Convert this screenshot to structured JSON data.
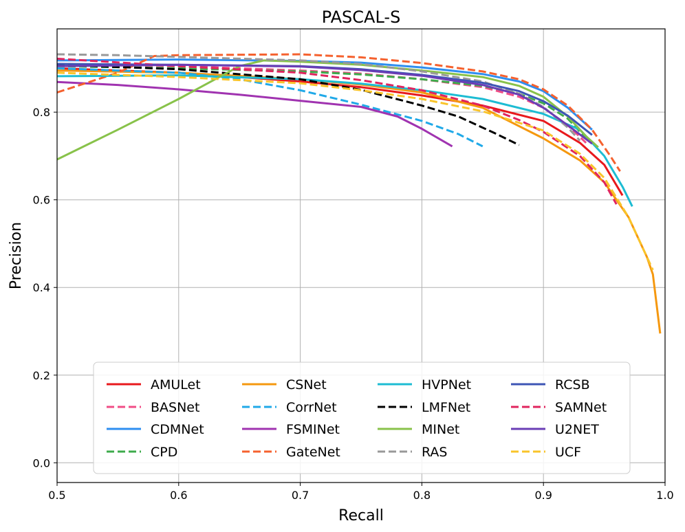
{
  "chart_data": {
    "type": "line",
    "title": "PASCAL-S",
    "xlabel": "Recall",
    "ylabel": "Precision",
    "xlim": [
      0.5,
      1.0
    ],
    "ylim": [
      -0.045,
      0.99
    ],
    "xticks": [
      0.5,
      0.6,
      0.7,
      0.8,
      0.9,
      1.0
    ],
    "xtick_labels": [
      "0.5",
      "0.6",
      "0.7",
      "0.8",
      "0.9",
      "1.0"
    ],
    "yticks": [
      0.0,
      0.2,
      0.4,
      0.6,
      0.8
    ],
    "ytick_labels": [
      "0.0",
      "0.2",
      "0.4",
      "0.6",
      "0.8"
    ],
    "grid": true,
    "legend_position": "bottom-center",
    "legend_columns": 4,
    "series": [
      {
        "name": "AMULet",
        "color": "#e8191c",
        "dash": "solid",
        "points": [
          [
            0.5,
            0.9
          ],
          [
            0.6,
            0.89
          ],
          [
            0.7,
            0.87
          ],
          [
            0.75,
            0.857
          ],
          [
            0.8,
            0.838
          ],
          [
            0.85,
            0.815
          ],
          [
            0.9,
            0.78
          ],
          [
            0.93,
            0.73
          ],
          [
            0.95,
            0.68
          ],
          [
            0.965,
            0.61
          ]
        ]
      },
      {
        "name": "BASNet",
        "color": "#f04c86",
        "dash": "dashed",
        "points": [
          [
            0.5,
            0.91
          ],
          [
            0.6,
            0.905
          ],
          [
            0.7,
            0.895
          ],
          [
            0.75,
            0.888
          ],
          [
            0.8,
            0.875
          ],
          [
            0.85,
            0.857
          ],
          [
            0.88,
            0.835
          ],
          [
            0.9,
            0.81
          ],
          [
            0.92,
            0.77
          ],
          [
            0.935,
            0.73
          ]
        ]
      },
      {
        "name": "CDMNet",
        "color": "#2e8ef0",
        "dash": "solid",
        "points": [
          [
            0.5,
            0.918
          ],
          [
            0.6,
            0.92
          ],
          [
            0.7,
            0.917
          ],
          [
            0.75,
            0.913
          ],
          [
            0.8,
            0.902
          ],
          [
            0.85,
            0.887
          ],
          [
            0.88,
            0.87
          ],
          [
            0.9,
            0.848
          ],
          [
            0.92,
            0.81
          ],
          [
            0.94,
            0.76
          ]
        ]
      },
      {
        "name": "CPD",
        "color": "#3eab4b",
        "dash": "dashed",
        "points": [
          [
            0.5,
            0.905
          ],
          [
            0.6,
            0.9
          ],
          [
            0.7,
            0.893
          ],
          [
            0.75,
            0.886
          ],
          [
            0.8,
            0.875
          ],
          [
            0.85,
            0.86
          ],
          [
            0.88,
            0.842
          ],
          [
            0.9,
            0.82
          ],
          [
            0.92,
            0.785
          ],
          [
            0.935,
            0.74
          ]
        ]
      },
      {
        "name": "CSNet",
        "color": "#f5980f",
        "dash": "solid",
        "points": [
          [
            0.5,
            0.895
          ],
          [
            0.6,
            0.89
          ],
          [
            0.7,
            0.875
          ],
          [
            0.75,
            0.863
          ],
          [
            0.8,
            0.845
          ],
          [
            0.85,
            0.81
          ],
          [
            0.9,
            0.74
          ],
          [
            0.93,
            0.69
          ],
          [
            0.95,
            0.64
          ],
          [
            0.97,
            0.56
          ],
          [
            0.985,
            0.47
          ],
          [
            0.99,
            0.43
          ],
          [
            0.996,
            0.295
          ]
        ]
      },
      {
        "name": "CorrNet",
        "color": "#20a9e8",
        "dash": "dashed",
        "points": [
          [
            0.5,
            0.9
          ],
          [
            0.6,
            0.89
          ],
          [
            0.65,
            0.875
          ],
          [
            0.7,
            0.85
          ],
          [
            0.75,
            0.817
          ],
          [
            0.8,
            0.78
          ],
          [
            0.83,
            0.75
          ],
          [
            0.85,
            0.722
          ]
        ]
      },
      {
        "name": "FSMINet",
        "color": "#a033b0",
        "dash": "solid",
        "points": [
          [
            0.5,
            0.869
          ],
          [
            0.55,
            0.862
          ],
          [
            0.6,
            0.852
          ],
          [
            0.65,
            0.84
          ],
          [
            0.7,
            0.826
          ],
          [
            0.75,
            0.812
          ],
          [
            0.78,
            0.79
          ],
          [
            0.8,
            0.762
          ],
          [
            0.825,
            0.722
          ]
        ]
      },
      {
        "name": "GateNet",
        "color": "#f5612e",
        "dash": "dashed",
        "points": [
          [
            0.5,
            0.845
          ],
          [
            0.55,
            0.89
          ],
          [
            0.58,
            0.928
          ],
          [
            0.6,
            0.93
          ],
          [
            0.7,
            0.932
          ],
          [
            0.75,
            0.925
          ],
          [
            0.8,
            0.912
          ],
          [
            0.85,
            0.893
          ],
          [
            0.88,
            0.875
          ],
          [
            0.9,
            0.852
          ],
          [
            0.92,
            0.815
          ],
          [
            0.94,
            0.76
          ],
          [
            0.955,
            0.7
          ],
          [
            0.963,
            0.665
          ]
        ]
      },
      {
        "name": "HVPNet",
        "color": "#1dbcd3",
        "dash": "solid",
        "points": [
          [
            0.5,
            0.882
          ],
          [
            0.6,
            0.884
          ],
          [
            0.7,
            0.875
          ],
          [
            0.75,
            0.865
          ],
          [
            0.8,
            0.85
          ],
          [
            0.85,
            0.83
          ],
          [
            0.9,
            0.796
          ],
          [
            0.93,
            0.76
          ],
          [
            0.95,
            0.7
          ],
          [
            0.965,
            0.63
          ],
          [
            0.973,
            0.585
          ]
        ]
      },
      {
        "name": "LMFNet",
        "color": "#000000",
        "dash": "dashed",
        "points": [
          [
            0.5,
            0.908
          ],
          [
            0.6,
            0.898
          ],
          [
            0.7,
            0.875
          ],
          [
            0.75,
            0.851
          ],
          [
            0.8,
            0.815
          ],
          [
            0.83,
            0.79
          ],
          [
            0.86,
            0.752
          ],
          [
            0.88,
            0.725
          ]
        ]
      },
      {
        "name": "MINet",
        "color": "#88c24a",
        "dash": "solid",
        "points": [
          [
            0.5,
            0.692
          ],
          [
            0.55,
            0.76
          ],
          [
            0.6,
            0.83
          ],
          [
            0.65,
            0.905
          ],
          [
            0.67,
            0.918
          ],
          [
            0.7,
            0.915
          ],
          [
            0.75,
            0.908
          ],
          [
            0.8,
            0.895
          ],
          [
            0.85,
            0.88
          ],
          [
            0.88,
            0.86
          ],
          [
            0.9,
            0.835
          ],
          [
            0.92,
            0.79
          ],
          [
            0.935,
            0.745
          ],
          [
            0.945,
            0.72
          ]
        ]
      },
      {
        "name": "RAS",
        "color": "#999999",
        "dash": "dashed",
        "points": [
          [
            0.5,
            0.932
          ],
          [
            0.55,
            0.93
          ],
          [
            0.6,
            0.926
          ],
          [
            0.7,
            0.918
          ],
          [
            0.75,
            0.91
          ],
          [
            0.8,
            0.893
          ],
          [
            0.85,
            0.87
          ],
          [
            0.88,
            0.842
          ],
          [
            0.9,
            0.812
          ],
          [
            0.92,
            0.765
          ],
          [
            0.93,
            0.735
          ]
        ]
      },
      {
        "name": "RCSB",
        "color": "#3d55b5",
        "dash": "solid",
        "points": [
          [
            0.5,
            0.91
          ],
          [
            0.6,
            0.908
          ],
          [
            0.7,
            0.905
          ],
          [
            0.75,
            0.898
          ],
          [
            0.8,
            0.885
          ],
          [
            0.85,
            0.867
          ],
          [
            0.88,
            0.848
          ],
          [
            0.9,
            0.825
          ],
          [
            0.92,
            0.792
          ],
          [
            0.94,
            0.748
          ]
        ]
      },
      {
        "name": "SAMNet",
        "color": "#e0245e",
        "dash": "dashed",
        "points": [
          [
            0.5,
            0.922
          ],
          [
            0.6,
            0.905
          ],
          [
            0.7,
            0.89
          ],
          [
            0.75,
            0.873
          ],
          [
            0.8,
            0.85
          ],
          [
            0.85,
            0.815
          ],
          [
            0.88,
            0.782
          ],
          [
            0.9,
            0.755
          ],
          [
            0.93,
            0.7
          ],
          [
            0.95,
            0.64
          ],
          [
            0.96,
            0.59
          ]
        ]
      },
      {
        "name": "U2NET",
        "color": "#6a3db5",
        "dash": "solid",
        "points": [
          [
            0.5,
            0.905
          ],
          [
            0.6,
            0.908
          ],
          [
            0.7,
            0.904
          ],
          [
            0.75,
            0.896
          ],
          [
            0.8,
            0.883
          ],
          [
            0.85,
            0.862
          ],
          [
            0.88,
            0.84
          ],
          [
            0.9,
            0.81
          ],
          [
            0.92,
            0.77
          ],
          [
            0.94,
            0.728
          ]
        ]
      },
      {
        "name": "UCF",
        "color": "#f9c42a",
        "dash": "dashed",
        "points": [
          [
            0.5,
            0.89
          ],
          [
            0.6,
            0.88
          ],
          [
            0.7,
            0.866
          ],
          [
            0.75,
            0.85
          ],
          [
            0.8,
            0.83
          ],
          [
            0.85,
            0.802
          ],
          [
            0.9,
            0.758
          ],
          [
            0.93,
            0.705
          ],
          [
            0.95,
            0.65
          ],
          [
            0.97,
            0.56
          ],
          [
            0.985,
            0.47
          ],
          [
            0.99,
            0.44
          ]
        ]
      }
    ]
  }
}
